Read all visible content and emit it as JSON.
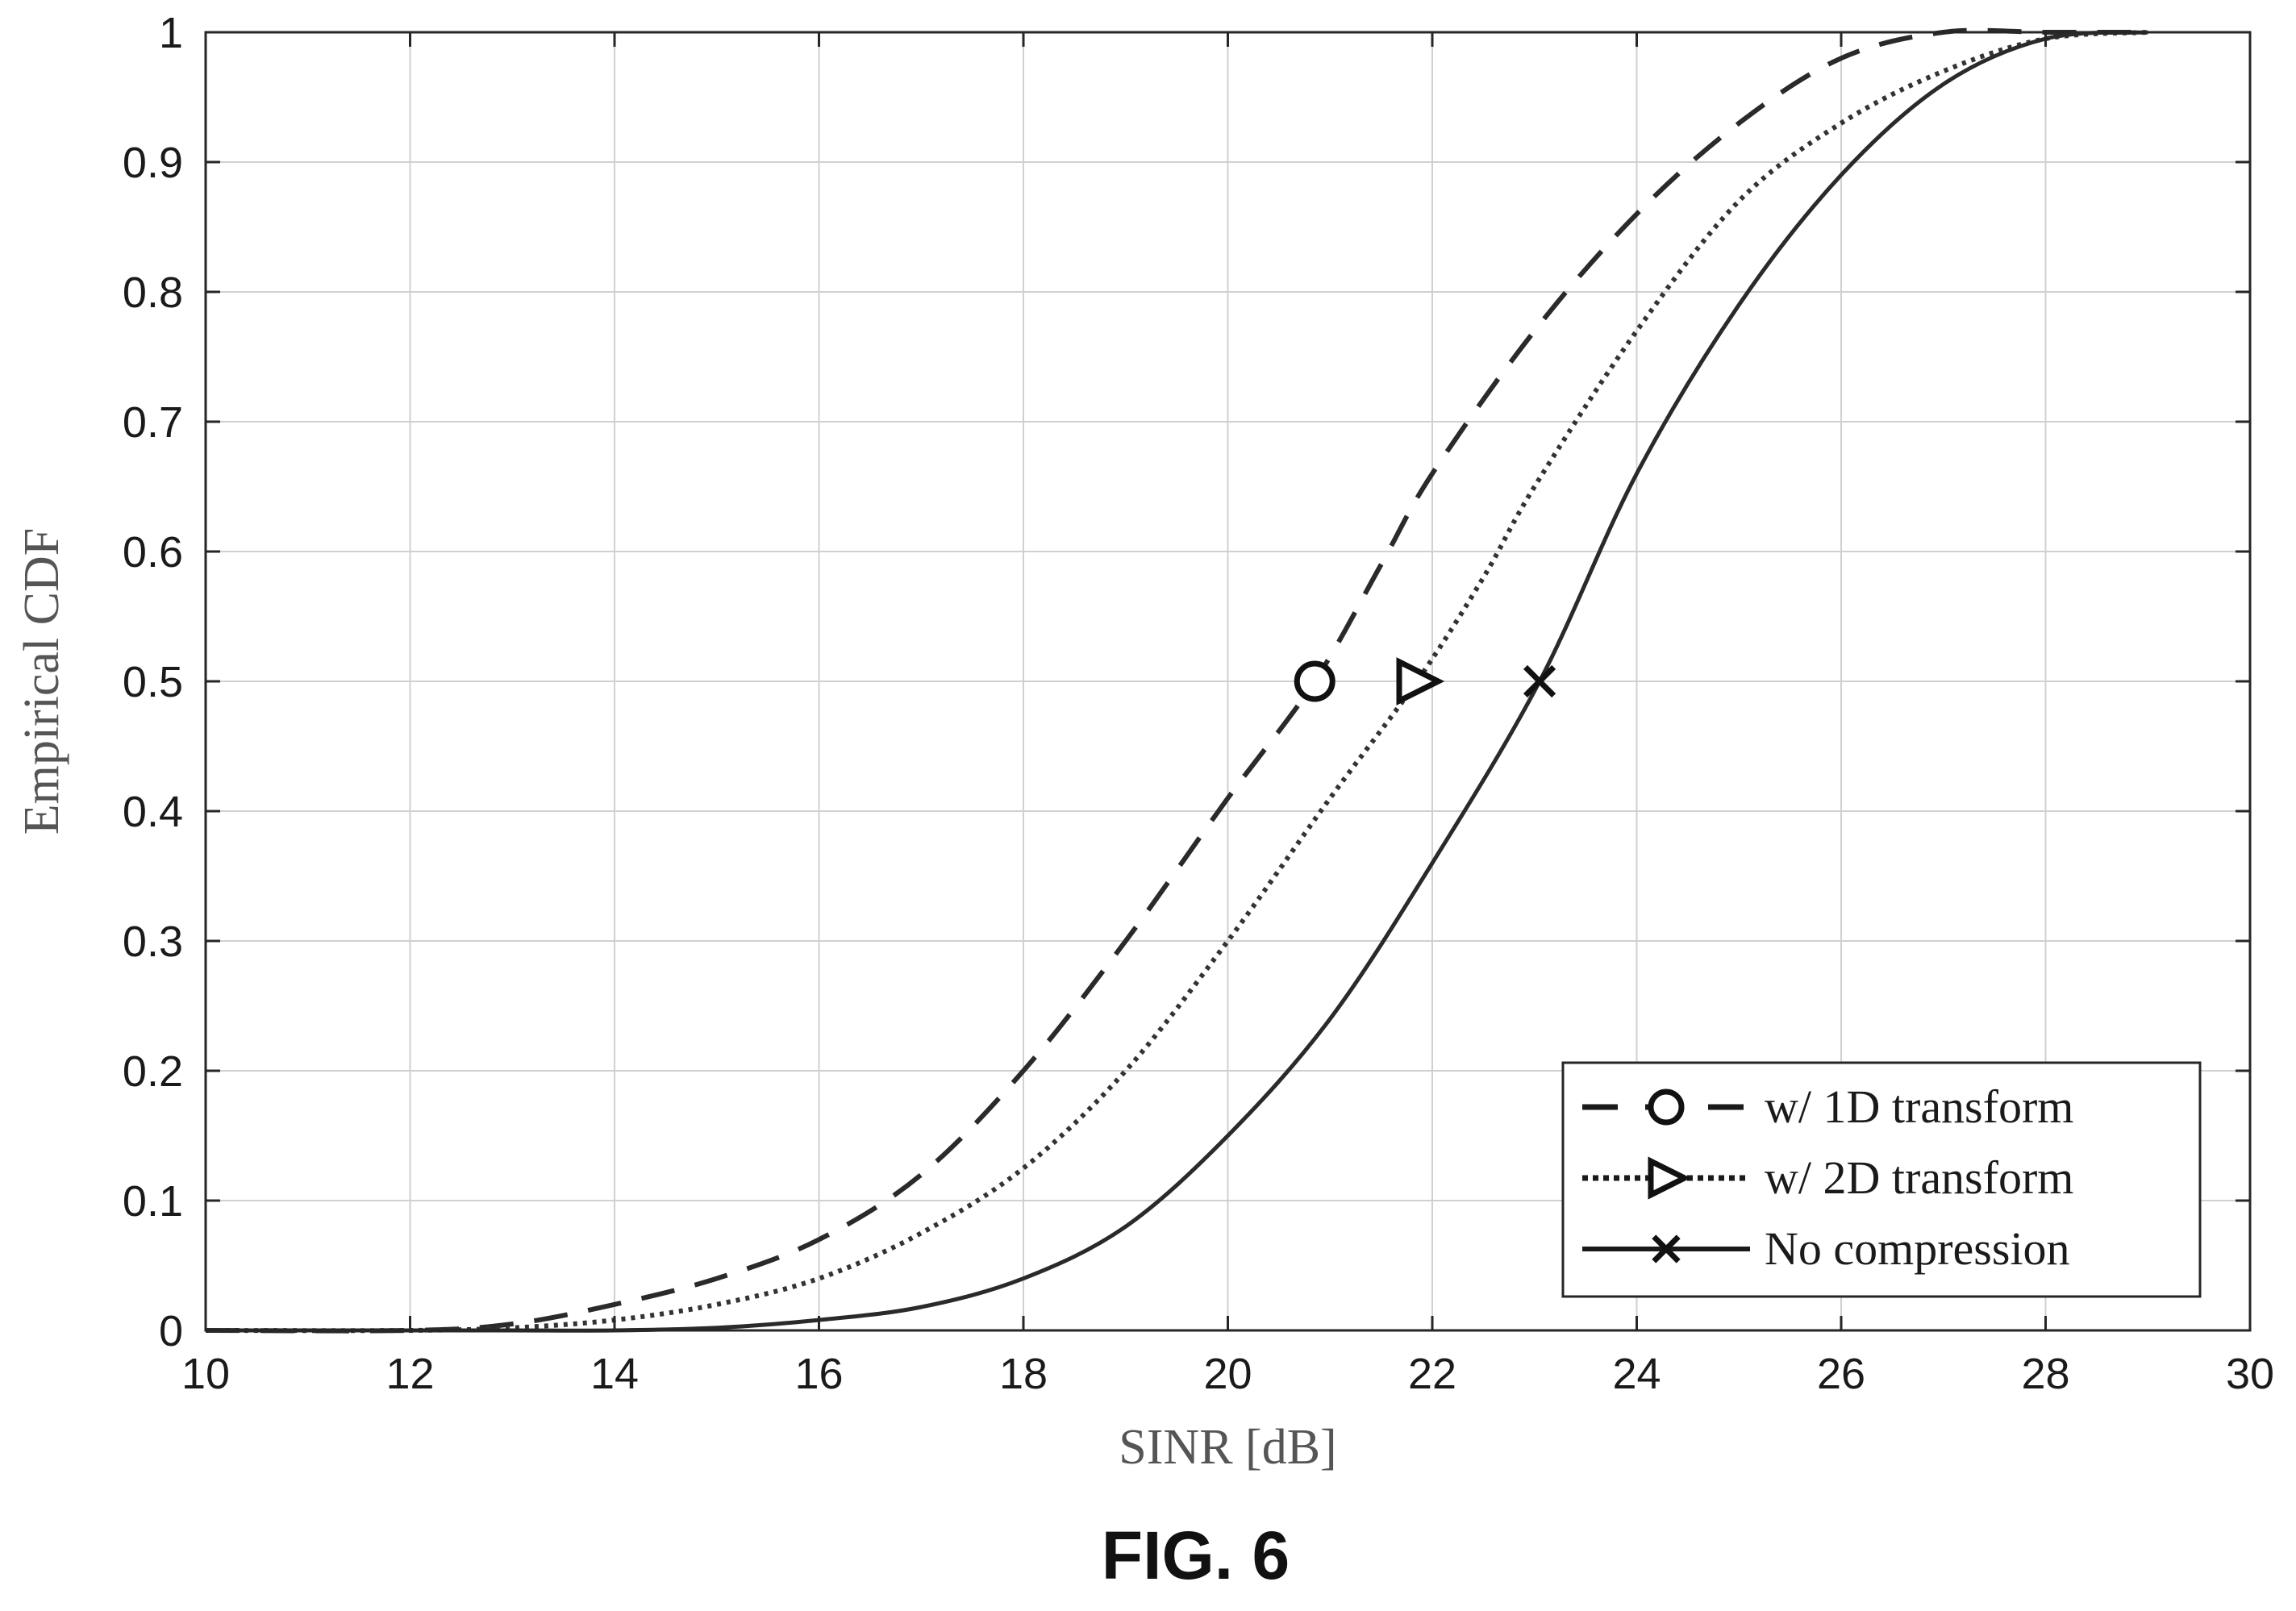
{
  "figure": {
    "caption": "FIG. 6"
  },
  "chart_data": {
    "type": "line",
    "xlabel": "SINR [dB]",
    "ylabel": "Empirical CDF",
    "xlim": [
      10,
      30
    ],
    "ylim": [
      0,
      1
    ],
    "xticks": [
      10,
      12,
      14,
      16,
      18,
      20,
      22,
      24,
      26,
      28,
      30
    ],
    "yticks": [
      0,
      0.1,
      0.2,
      0.3,
      0.4,
      0.5,
      0.6,
      0.7,
      0.8,
      0.9,
      1
    ],
    "xtick_labels": [
      "10",
      "12",
      "14",
      "16",
      "18",
      "20",
      "22",
      "24",
      "26",
      "28",
      "30"
    ],
    "ytick_labels": [
      "0",
      "0.1",
      "0.2",
      "0.3",
      "0.4",
      "0.5",
      "0.6",
      "0.7",
      "0.8",
      "0.9",
      "1"
    ],
    "grid": true,
    "legend_position": "bottom-right",
    "series": [
      {
        "name": "w/ 1D transform",
        "line_style": "dashed",
        "marker": "circle",
        "marker_point": [
          20.85,
          0.5
        ],
        "x": [
          10,
          12,
          13,
          14,
          15,
          16,
          17,
          18,
          19,
          20,
          20.85,
          21.5,
          22,
          23,
          24,
          25,
          26,
          27,
          28,
          29
        ],
        "y": [
          0,
          0,
          0.005,
          0.02,
          0.04,
          0.07,
          0.12,
          0.2,
          0.3,
          0.41,
          0.5,
          0.59,
          0.66,
          0.77,
          0.86,
          0.93,
          0.98,
          1.0,
          1.0,
          1.0
        ]
      },
      {
        "name": "w/ 2D transform",
        "line_style": "dotted",
        "marker": "triangle-right",
        "marker_point": [
          21.85,
          0.5
        ],
        "x": [
          10,
          12,
          13,
          14,
          15,
          16,
          17,
          18,
          19,
          20,
          21,
          21.85,
          22.5,
          23,
          24,
          25,
          26,
          27,
          28,
          29
        ],
        "y": [
          0,
          0,
          0.002,
          0.008,
          0.02,
          0.04,
          0.075,
          0.125,
          0.2,
          0.3,
          0.41,
          0.5,
          0.58,
          0.65,
          0.77,
          0.87,
          0.93,
          0.97,
          0.995,
          1.0
        ]
      },
      {
        "name": "No compression",
        "line_style": "solid",
        "marker": "x",
        "marker_point": [
          23.05,
          0.5
        ],
        "x": [
          10,
          12,
          13,
          14,
          15,
          16,
          17,
          18,
          19,
          20,
          21,
          22,
          23.05,
          24,
          25,
          26,
          27,
          28,
          29
        ],
        "y": [
          0,
          0,
          0,
          0,
          0.002,
          0.008,
          0.018,
          0.04,
          0.08,
          0.15,
          0.24,
          0.36,
          0.5,
          0.66,
          0.79,
          0.89,
          0.96,
          0.995,
          1.0
        ]
      }
    ]
  }
}
